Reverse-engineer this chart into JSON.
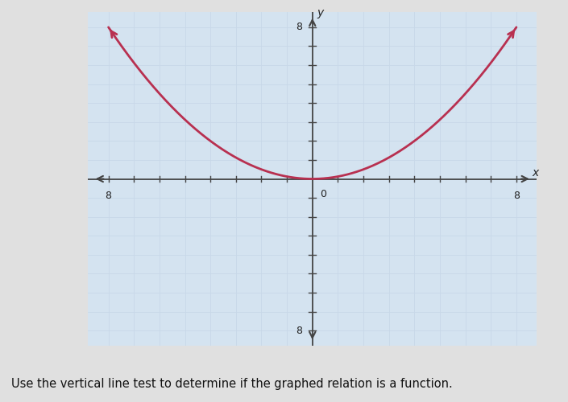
{
  "xlabel": "x",
  "ylabel": "y",
  "xlim": [
    -8.8,
    8.8
  ],
  "ylim": [
    -8.8,
    8.8
  ],
  "grid_ticks": [
    -8,
    -7,
    -6,
    -5,
    -4,
    -3,
    -2,
    -1,
    0,
    1,
    2,
    3,
    4,
    5,
    6,
    7,
    8
  ],
  "grid_color": "#c8d8e8",
  "background_color": "#d4e3f0",
  "outer_background": "#e0e0e0",
  "curve_color": "#b83050",
  "curve_linewidth": 2.0,
  "parabola_a": 0.125,
  "axis_color": "#444444",
  "tick_label_fontsize": 9,
  "axis_label_fontsize": 10,
  "caption": "Use the vertical line test to determine if the graphed relation is a function.",
  "caption_fontsize": 10.5,
  "tick_label_color": "#222222"
}
